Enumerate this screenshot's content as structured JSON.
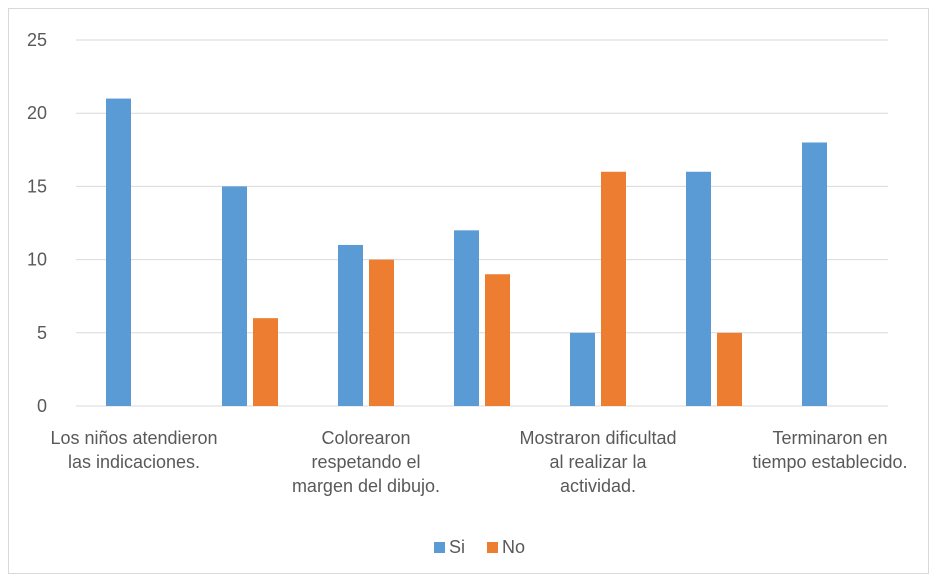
{
  "chart_data": {
    "type": "bar",
    "title": "",
    "xlabel": "",
    "ylabel": "",
    "ylim": [
      0,
      25
    ],
    "yticks": [
      0,
      5,
      10,
      15,
      20,
      25
    ],
    "grid": true,
    "legend_position": "bottom",
    "groups": 7,
    "category_labels": [
      {
        "group": 0,
        "lines": [
          "Los niños atendieron",
          "las indicaciones."
        ]
      },
      {
        "group": 2,
        "lines": [
          "Colorearon",
          "respetando el",
          "margen del dibujo."
        ]
      },
      {
        "group": 4,
        "lines": [
          "Mostraron dificultad",
          "al realizar la",
          "actividad."
        ]
      },
      {
        "group": 6,
        "lines": [
          "Terminaron en",
          "tiempo establecido."
        ]
      }
    ],
    "series": [
      {
        "name": "Si",
        "color": "#5b9bd5",
        "values": [
          21,
          15,
          11,
          12,
          5,
          16,
          18
        ]
      },
      {
        "name": "No",
        "color": "#ed7d31",
        "values": [
          0,
          6,
          10,
          9,
          16,
          5,
          0
        ]
      }
    ]
  }
}
